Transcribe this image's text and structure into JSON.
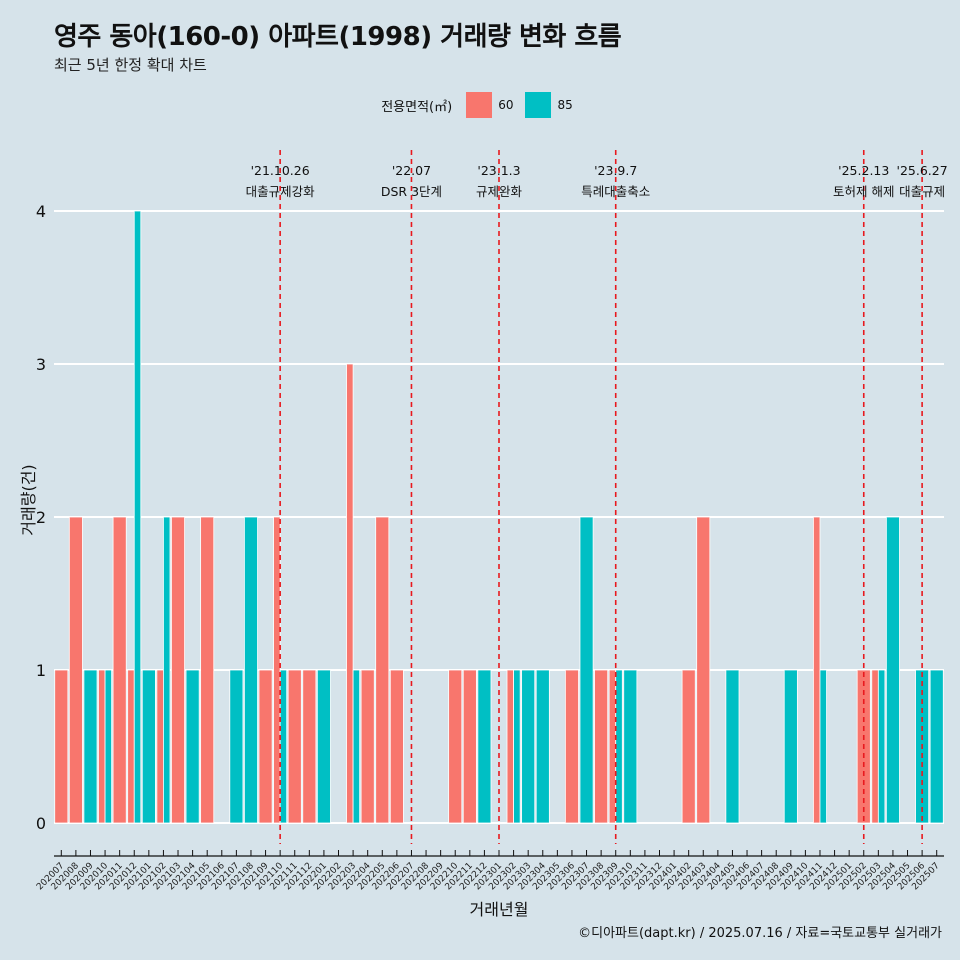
{
  "header": {
    "title": "영주 동아(160-0) 아파트(1998) 거래량 변화 흐름",
    "subtitle": "최근 5년 한정 확대 차트"
  },
  "legend": {
    "title": "전용면적(㎡)",
    "items": [
      {
        "label": "60",
        "color": "#f8766d"
      },
      {
        "label": "85",
        "color": "#00bfc4"
      }
    ]
  },
  "caption": "©디아파트(dapt.kr) / 2025.07.16 / 자료=국토교통부 실거래가",
  "chart_data": {
    "type": "bar",
    "xlabel": "거래년월",
    "ylabel": "거래량(건)",
    "ylim": [
      0,
      4
    ],
    "yticks": [
      0,
      1,
      2,
      3,
      4
    ],
    "grid": true,
    "legend_position": "top",
    "categories": [
      "202007",
      "202008",
      "202009",
      "202010",
      "202011",
      "202012",
      "202101",
      "202102",
      "202103",
      "202104",
      "202105",
      "202106",
      "202107",
      "202108",
      "202109",
      "202110",
      "202111",
      "202112",
      "202201",
      "202202",
      "202203",
      "202204",
      "202205",
      "202206",
      "202207",
      "202208",
      "202209",
      "202210",
      "202211",
      "202212",
      "202301",
      "202302",
      "202303",
      "202304",
      "202305",
      "202306",
      "202307",
      "202308",
      "202309",
      "202310",
      "202311",
      "202312",
      "202401",
      "202402",
      "202403",
      "202404",
      "202405",
      "202406",
      "202407",
      "202408",
      "202409",
      "202410",
      "202411",
      "202412",
      "202501",
      "202502",
      "202503",
      "202504",
      "202505",
      "202506",
      "202507"
    ],
    "series": [
      {
        "name": "60",
        "color": "#f8766d",
        "values": [
          1,
          2,
          0,
          1,
          2,
          1,
          0,
          1,
          2,
          0,
          2,
          0,
          0,
          0,
          1,
          2,
          1,
          1,
          0,
          0,
          3,
          1,
          2,
          1,
          0,
          0,
          0,
          1,
          1,
          0,
          0,
          1,
          0,
          0,
          0,
          1,
          0,
          1,
          1,
          0,
          0,
          0,
          0,
          1,
          2,
          0,
          0,
          0,
          0,
          0,
          0,
          0,
          2,
          0,
          0,
          1,
          1,
          0,
          0,
          0,
          0
        ]
      },
      {
        "name": "85",
        "color": "#00bfc4",
        "values": [
          0,
          0,
          1,
          1,
          0,
          4,
          1,
          2,
          0,
          1,
          0,
          0,
          1,
          2,
          0,
          1,
          0,
          0,
          1,
          0,
          1,
          0,
          0,
          0,
          0,
          0,
          0,
          0,
          0,
          1,
          0,
          1,
          1,
          1,
          0,
          0,
          2,
          0,
          1,
          1,
          0,
          0,
          0,
          0,
          0,
          0,
          1,
          0,
          0,
          0,
          1,
          0,
          1,
          0,
          0,
          0,
          1,
          2,
          0,
          1,
          1
        ]
      }
    ],
    "annotations": [
      {
        "date": "'21.10.26",
        "text": "대출규제강화",
        "category": "202110"
      },
      {
        "date": "'22.07",
        "text": "DSR 3단계",
        "category": "202207"
      },
      {
        "date": "'23.1.3",
        "text": "규제완화",
        "category": "202301"
      },
      {
        "date": "'23.9.7",
        "text": "특례대출축소",
        "category": "202309"
      },
      {
        "date": "'25.2.13",
        "text": "토허제 해제",
        "category": "202502"
      },
      {
        "date": "'25.6.27",
        "text": "대출규제",
        "category": "202506"
      }
    ]
  }
}
